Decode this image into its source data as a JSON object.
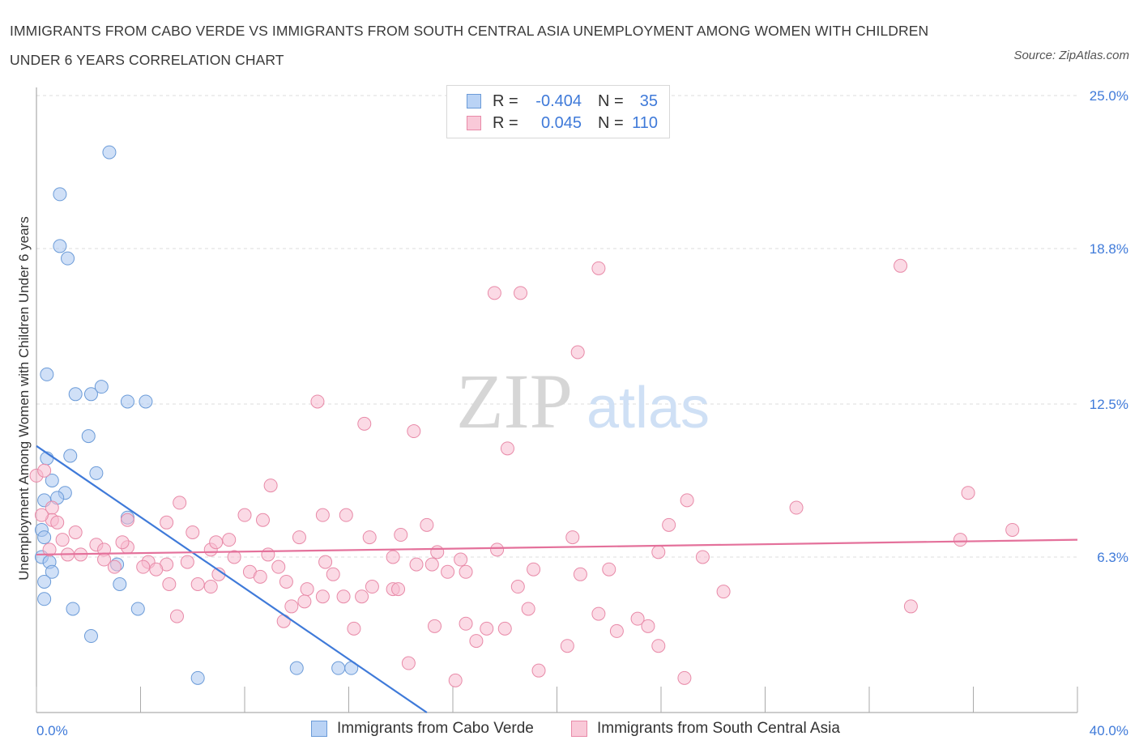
{
  "title": "IMMIGRANTS FROM CABO VERDE VS IMMIGRANTS FROM SOUTH CENTRAL ASIA UNEMPLOYMENT AMONG WOMEN WITH CHILDREN UNDER 6 YEARS CORRELATION CHART",
  "source": "Source: ZipAtlas.com",
  "watermark": {
    "zip": "ZIP",
    "atlas": "atlas"
  },
  "legend": {
    "r_label": "R =",
    "n_label": "N =",
    "rows": [
      {
        "r": "-0.404",
        "n": "35"
      },
      {
        "r": "0.045",
        "n": "110"
      }
    ]
  },
  "chart_data": {
    "type": "scatter",
    "title": "IMMIGRANTS FROM CABO VERDE VS IMMIGRANTS FROM SOUTH CENTRAL ASIA UNEMPLOYMENT AMONG WOMEN WITH CHILDREN UNDER 6 YEARS CORRELATION CHART",
    "xlabel": "",
    "ylabel": "Unemployment Among Women with Children Under 6 years",
    "xlim": [
      0,
      40
    ],
    "ylim": [
      0,
      25
    ],
    "x_tick_labels": [
      {
        "value": 0,
        "label": "0.0%"
      },
      {
        "value": 40,
        "label": "40.0%"
      }
    ],
    "y_tick_labels": [
      {
        "value": 6.3,
        "label": "6.3%"
      },
      {
        "value": 12.5,
        "label": "12.5%"
      },
      {
        "value": 18.8,
        "label": "18.8%"
      },
      {
        "value": 25.0,
        "label": "25.0%"
      }
    ],
    "grid": true,
    "legend_position": "bottom-center",
    "series": [
      {
        "name": "Immigrants from Cabo Verde",
        "color": "#a9c7f0",
        "stroke": "#6b9bd8",
        "r": -0.404,
        "n": 35,
        "trend": {
          "x": [
            0.0,
            15.0
          ],
          "y": [
            10.8,
            0.0
          ],
          "color": "#3f7ad9"
        },
        "points": [
          [
            2.8,
            22.7
          ],
          [
            0.9,
            21.0
          ],
          [
            0.9,
            18.9
          ],
          [
            1.2,
            18.4
          ],
          [
            0.4,
            13.7
          ],
          [
            1.5,
            12.9
          ],
          [
            2.1,
            12.9
          ],
          [
            2.5,
            13.2
          ],
          [
            3.5,
            12.6
          ],
          [
            4.2,
            12.6
          ],
          [
            2.0,
            11.2
          ],
          [
            0.4,
            10.3
          ],
          [
            1.3,
            10.4
          ],
          [
            2.3,
            9.7
          ],
          [
            0.6,
            9.4
          ],
          [
            1.1,
            8.9
          ],
          [
            0.3,
            8.6
          ],
          [
            0.8,
            8.7
          ],
          [
            3.5,
            7.9
          ],
          [
            0.2,
            7.4
          ],
          [
            0.3,
            7.1
          ],
          [
            0.2,
            6.3
          ],
          [
            0.5,
            6.1
          ],
          [
            3.1,
            6.0
          ],
          [
            0.6,
            5.7
          ],
          [
            0.3,
            5.3
          ],
          [
            3.2,
            5.2
          ],
          [
            0.3,
            4.6
          ],
          [
            1.4,
            4.2
          ],
          [
            3.9,
            4.2
          ],
          [
            2.1,
            3.1
          ],
          [
            6.2,
            1.4
          ],
          [
            10.0,
            1.8
          ],
          [
            11.6,
            1.8
          ],
          [
            12.1,
            1.8
          ]
        ]
      },
      {
        "name": "Immigrants from South Central Asia",
        "color": "#f7bcd0",
        "stroke": "#e88aa8",
        "r": 0.045,
        "n": 110,
        "trend": {
          "x": [
            0.0,
            40.0
          ],
          "y": [
            6.4,
            7.0
          ],
          "color": "#e4719b"
        },
        "points": [
          [
            21.6,
            18.0
          ],
          [
            33.2,
            18.1
          ],
          [
            17.6,
            17.0
          ],
          [
            18.6,
            17.0
          ],
          [
            20.8,
            14.6
          ],
          [
            10.8,
            12.6
          ],
          [
            12.6,
            11.7
          ],
          [
            14.5,
            11.4
          ],
          [
            18.1,
            10.7
          ],
          [
            0.0,
            9.6
          ],
          [
            9.0,
            9.2
          ],
          [
            35.8,
            8.9
          ],
          [
            25.0,
            8.6
          ],
          [
            29.2,
            8.3
          ],
          [
            5.5,
            8.5
          ],
          [
            0.6,
            8.3
          ],
          [
            0.6,
            7.8
          ],
          [
            0.8,
            7.7
          ],
          [
            3.5,
            7.8
          ],
          [
            8.0,
            8.0
          ],
          [
            8.7,
            7.8
          ],
          [
            11.0,
            8.0
          ],
          [
            11.9,
            8.0
          ],
          [
            5.0,
            7.7
          ],
          [
            15.0,
            7.6
          ],
          [
            24.3,
            7.6
          ],
          [
            1.5,
            7.3
          ],
          [
            6.0,
            7.3
          ],
          [
            7.4,
            7.0
          ],
          [
            10.1,
            7.1
          ],
          [
            12.8,
            7.1
          ],
          [
            14.0,
            7.2
          ],
          [
            20.6,
            7.1
          ],
          [
            35.5,
            7.0
          ],
          [
            37.5,
            7.4
          ],
          [
            2.3,
            6.8
          ],
          [
            2.6,
            6.6
          ],
          [
            3.5,
            6.7
          ],
          [
            3.3,
            6.9
          ],
          [
            6.7,
            6.6
          ],
          [
            6.9,
            6.9
          ],
          [
            17.7,
            6.6
          ],
          [
            23.9,
            6.5
          ],
          [
            15.4,
            6.5
          ],
          [
            1.2,
            6.4
          ],
          [
            1.7,
            6.4
          ],
          [
            2.6,
            6.2
          ],
          [
            4.3,
            6.1
          ],
          [
            5.0,
            6.0
          ],
          [
            5.8,
            6.1
          ],
          [
            7.6,
            6.3
          ],
          [
            8.9,
            6.4
          ],
          [
            11.1,
            6.1
          ],
          [
            13.7,
            6.3
          ],
          [
            14.6,
            6.0
          ],
          [
            15.2,
            6.0
          ],
          [
            16.3,
            6.2
          ],
          [
            25.6,
            6.3
          ],
          [
            3.0,
            5.9
          ],
          [
            4.1,
            5.9
          ],
          [
            4.6,
            5.8
          ],
          [
            7.0,
            5.6
          ],
          [
            8.2,
            5.7
          ],
          [
            8.6,
            5.5
          ],
          [
            9.3,
            5.9
          ],
          [
            11.4,
            5.6
          ],
          [
            15.8,
            5.7
          ],
          [
            16.5,
            5.7
          ],
          [
            19.1,
            5.8
          ],
          [
            20.9,
            5.6
          ],
          [
            22.0,
            5.8
          ],
          [
            5.1,
            5.2
          ],
          [
            6.2,
            5.2
          ],
          [
            6.7,
            5.1
          ],
          [
            9.6,
            5.3
          ],
          [
            10.4,
            5.0
          ],
          [
            11.8,
            4.7
          ],
          [
            12.5,
            4.7
          ],
          [
            12.9,
            5.1
          ],
          [
            13.7,
            5.0
          ],
          [
            13.9,
            5.0
          ],
          [
            18.5,
            5.1
          ],
          [
            26.4,
            4.9
          ],
          [
            10.3,
            4.5
          ],
          [
            9.8,
            4.3
          ],
          [
            11.0,
            4.7
          ],
          [
            18.9,
            4.2
          ],
          [
            21.6,
            4.0
          ],
          [
            33.6,
            4.3
          ],
          [
            5.4,
            3.9
          ],
          [
            9.5,
            3.7
          ],
          [
            12.2,
            3.4
          ],
          [
            15.3,
            3.5
          ],
          [
            16.5,
            3.6
          ],
          [
            17.3,
            3.4
          ],
          [
            18.0,
            3.4
          ],
          [
            22.3,
            3.3
          ],
          [
            23.1,
            3.8
          ],
          [
            23.5,
            3.5
          ],
          [
            16.9,
            2.9
          ],
          [
            20.4,
            2.7
          ],
          [
            23.9,
            2.7
          ],
          [
            14.3,
            2.0
          ],
          [
            19.3,
            1.7
          ],
          [
            16.1,
            1.3
          ],
          [
            24.9,
            1.4
          ],
          [
            0.3,
            9.8
          ],
          [
            0.5,
            6.6
          ],
          [
            1.0,
            7.0
          ],
          [
            0.2,
            8.0
          ]
        ]
      }
    ]
  }
}
